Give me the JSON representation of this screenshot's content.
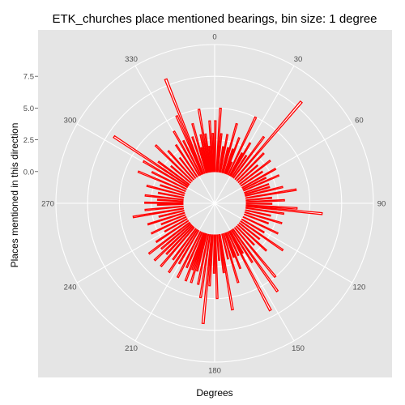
{
  "chart_data": {
    "type": "bar",
    "coordinate_system": "polar",
    "title": "ETK_churches place mentioned bearings, bin size: 1 degree",
    "xlabel": "Degrees",
    "ylabel": "Places mentioned in this direction",
    "angle_ticks": [
      "0",
      "30",
      "60",
      "90",
      "120",
      "150",
      "180",
      "210",
      "240",
      "270",
      "300",
      "330"
    ],
    "radial_ticks": [
      "0.0",
      "2.5",
      "5.0",
      "7.5"
    ],
    "ylim": [
      -2.5,
      10
    ],
    "grid": true,
    "legend": "none",
    "colors": {
      "panel": "#e5e5e5",
      "grid": "#ffffff",
      "bar_fill": "#ffffff",
      "bar_outline": "#ff0000"
    },
    "bars": [
      {
        "x": 0,
        "y": 4
      },
      {
        "x": 3,
        "y": 5
      },
      {
        "x": 5,
        "y": 3
      },
      {
        "x": 8,
        "y": 2
      },
      {
        "x": 10,
        "y": 3
      },
      {
        "x": 13,
        "y": 2
      },
      {
        "x": 15,
        "y": 4
      },
      {
        "x": 18,
        "y": 2
      },
      {
        "x": 20,
        "y": 3
      },
      {
        "x": 22,
        "y": 1
      },
      {
        "x": 25,
        "y": 5
      },
      {
        "x": 28,
        "y": 2
      },
      {
        "x": 30,
        "y": 3
      },
      {
        "x": 33,
        "y": 2
      },
      {
        "x": 36,
        "y": 4
      },
      {
        "x": 40,
        "y": 8
      },
      {
        "x": 44,
        "y": 3
      },
      {
        "x": 48,
        "y": 2
      },
      {
        "x": 52,
        "y": 3
      },
      {
        "x": 56,
        "y": 2
      },
      {
        "x": 60,
        "y": 3
      },
      {
        "x": 63,
        "y": 2
      },
      {
        "x": 66,
        "y": 3
      },
      {
        "x": 70,
        "y": 2
      },
      {
        "x": 73,
        "y": 2
      },
      {
        "x": 76,
        "y": 3
      },
      {
        "x": 80,
        "y": 4
      },
      {
        "x": 84,
        "y": 2
      },
      {
        "x": 87,
        "y": 3
      },
      {
        "x": 90,
        "y": 2
      },
      {
        "x": 93,
        "y": 4
      },
      {
        "x": 95,
        "y": 6
      },
      {
        "x": 98,
        "y": 3
      },
      {
        "x": 102,
        "y": 2
      },
      {
        "x": 106,
        "y": 3
      },
      {
        "x": 110,
        "y": 2
      },
      {
        "x": 115,
        "y": 3
      },
      {
        "x": 120,
        "y": 2
      },
      {
        "x": 124,
        "y": 4
      },
      {
        "x": 128,
        "y": 2
      },
      {
        "x": 132,
        "y": 3
      },
      {
        "x": 136,
        "y": 2
      },
      {
        "x": 140,
        "y": 5
      },
      {
        "x": 144,
        "y": 6
      },
      {
        "x": 147,
        "y": 3
      },
      {
        "x": 150,
        "y": 2
      },
      {
        "x": 152,
        "y": 7
      },
      {
        "x": 155,
        "y": 2
      },
      {
        "x": 158,
        "y": 3
      },
      {
        "x": 160,
        "y": 2
      },
      {
        "x": 163,
        "y": 4
      },
      {
        "x": 166,
        "y": 2
      },
      {
        "x": 170,
        "y": 6
      },
      {
        "x": 172,
        "y": 3
      },
      {
        "x": 175,
        "y": 2
      },
      {
        "x": 178,
        "y": 5
      },
      {
        "x": 180,
        "y": 3
      },
      {
        "x": 183,
        "y": 4
      },
      {
        "x": 185,
        "y": 7
      },
      {
        "x": 188,
        "y": 5
      },
      {
        "x": 191,
        "y": 4
      },
      {
        "x": 194,
        "y": 3
      },
      {
        "x": 196,
        "y": 4
      },
      {
        "x": 198,
        "y": 3
      },
      {
        "x": 200,
        "y": 4
      },
      {
        "x": 203,
        "y": 3
      },
      {
        "x": 206,
        "y": 4
      },
      {
        "x": 210,
        "y": 3
      },
      {
        "x": 213,
        "y": 4
      },
      {
        "x": 216,
        "y": 3
      },
      {
        "x": 220,
        "y": 4
      },
      {
        "x": 223,
        "y": 3
      },
      {
        "x": 226,
        "y": 4
      },
      {
        "x": 229,
        "y": 3
      },
      {
        "x": 232,
        "y": 4
      },
      {
        "x": 236,
        "y": 3
      },
      {
        "x": 240,
        "y": 2
      },
      {
        "x": 244,
        "y": 3
      },
      {
        "x": 248,
        "y": 2
      },
      {
        "x": 252,
        "y": 3
      },
      {
        "x": 256,
        "y": 2
      },
      {
        "x": 260,
        "y": 4
      },
      {
        "x": 264,
        "y": 3
      },
      {
        "x": 268,
        "y": 2
      },
      {
        "x": 270,
        "y": 3
      },
      {
        "x": 273,
        "y": 2
      },
      {
        "x": 276,
        "y": 3
      },
      {
        "x": 280,
        "y": 2
      },
      {
        "x": 284,
        "y": 3
      },
      {
        "x": 288,
        "y": 2
      },
      {
        "x": 292,
        "y": 4
      },
      {
        "x": 296,
        "y": 3
      },
      {
        "x": 300,
        "y": 4
      },
      {
        "x": 303,
        "y": 7
      },
      {
        "x": 306,
        "y": 3
      },
      {
        "x": 310,
        "y": 2
      },
      {
        "x": 314,
        "y": 4
      },
      {
        "x": 318,
        "y": 3
      },
      {
        "x": 322,
        "y": 2
      },
      {
        "x": 326,
        "y": 3
      },
      {
        "x": 330,
        "y": 4
      },
      {
        "x": 333,
        "y": 3
      },
      {
        "x": 336,
        "y": 5
      },
      {
        "x": 338,
        "y": 8
      },
      {
        "x": 341,
        "y": 3
      },
      {
        "x": 344,
        "y": 4
      },
      {
        "x": 346,
        "y": 2
      },
      {
        "x": 348,
        "y": 3
      },
      {
        "x": 350,
        "y": 5
      },
      {
        "x": 352,
        "y": 3
      },
      {
        "x": 354,
        "y": 2
      },
      {
        "x": 356,
        "y": 4
      },
      {
        "x": 358,
        "y": 3
      }
    ]
  }
}
